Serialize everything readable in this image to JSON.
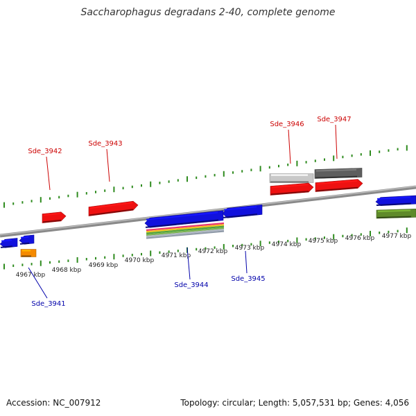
{
  "title": "Saccharophagus degradans 2-40, complete genome",
  "footer": {
    "accession": "Accession: NC_007912",
    "summary": "Topology: circular; Length: 5,057,531 bp; Genes: 4,056"
  },
  "colors": {
    "forward_label": "#cc0000",
    "reverse_label": "#0000aa",
    "tick": "#2e8b1e",
    "backbone": "#8a8a8a",
    "red_gene": "#ee1111",
    "blue_gene": "#1111dd",
    "light_gray_gene": "#c8c8c8",
    "dark_gray_gene": "#5e5e5e",
    "olive_gene": "#5f8a2a",
    "orange_gene": "#f58a00"
  },
  "axis": {
    "unit": "kbp",
    "tick_labels": [
      "4967 kbp",
      "4968 kbp",
      "4969 kbp",
      "4970 kbp",
      "4971 kbp",
      "4972 kbp",
      "4973 kbp",
      "4974 kbp",
      "4975 kbp",
      "4976 kbp",
      "4977 kbp"
    ]
  },
  "genes": {
    "forward_labels": [
      "Sde_3942",
      "Sde_3943",
      "Sde_3946",
      "Sde_3947"
    ],
    "reverse_labels": [
      "Sde_3941",
      "Sde_3944",
      "Sde_3945"
    ]
  }
}
